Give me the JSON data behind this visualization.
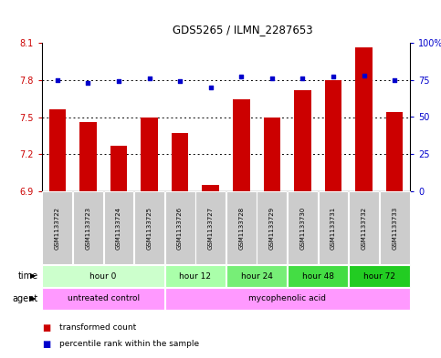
{
  "title": "GDS5265 / ILMN_2287653",
  "samples": [
    "GSM1133722",
    "GSM1133723",
    "GSM1133724",
    "GSM1133725",
    "GSM1133726",
    "GSM1133727",
    "GSM1133728",
    "GSM1133729",
    "GSM1133730",
    "GSM1133731",
    "GSM1133732",
    "GSM1133733"
  ],
  "bar_values": [
    7.56,
    7.46,
    7.27,
    7.5,
    7.37,
    6.95,
    7.64,
    7.5,
    7.72,
    7.8,
    8.06,
    7.54
  ],
  "dot_values": [
    75,
    73,
    74,
    76,
    74,
    70,
    77,
    76,
    76,
    77,
    78,
    75
  ],
  "ymin": 6.9,
  "ymax": 8.1,
  "yticks": [
    6.9,
    7.2,
    7.5,
    7.8,
    8.1
  ],
  "y2min": 0,
  "y2max": 100,
  "y2ticks": [
    0,
    25,
    50,
    75,
    100
  ],
  "y2tick_labels": [
    "0",
    "25",
    "50",
    "75",
    "100%"
  ],
  "bar_color": "#cc0000",
  "dot_color": "#0000cc",
  "time_groups": [
    {
      "label": "hour 0",
      "start": 0,
      "end": 3,
      "color": "#ccffcc"
    },
    {
      "label": "hour 12",
      "start": 4,
      "end": 5,
      "color": "#aaffaa"
    },
    {
      "label": "hour 24",
      "start": 6,
      "end": 7,
      "color": "#77ee77"
    },
    {
      "label": "hour 48",
      "start": 8,
      "end": 9,
      "color": "#44dd44"
    },
    {
      "label": "hour 72",
      "start": 10,
      "end": 11,
      "color": "#22cc22"
    }
  ],
  "agent_groups": [
    {
      "label": "untreated control",
      "start": 0,
      "end": 3,
      "color": "#ff99ff"
    },
    {
      "label": "mycophenolic acid",
      "start": 4,
      "end": 11,
      "color": "#ff99ff"
    }
  ],
  "time_label": "time",
  "agent_label": "agent",
  "legend_bar_label": "transformed count",
  "legend_dot_label": "percentile rank within the sample",
  "bg_color": "#ffffff",
  "sample_bg_color": "#cccccc",
  "figsize": [
    4.83,
    3.93
  ],
  "dpi": 100
}
